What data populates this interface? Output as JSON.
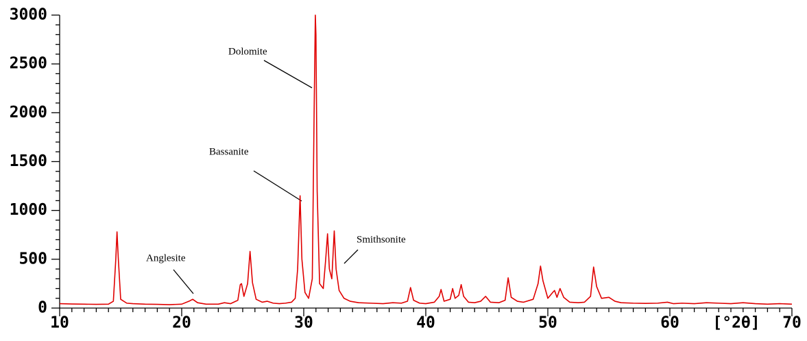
{
  "chart_data": {
    "type": "line",
    "color": "#e00000",
    "x_label": "[°2θ]",
    "x": [
      10,
      11,
      12,
      13,
      14,
      14.4,
      14.6,
      14.7,
      14.8,
      15.0,
      15.5,
      16,
      17,
      18,
      19,
      20,
      20.6,
      20.9,
      21.3,
      22,
      23,
      23.5,
      24,
      24.6,
      24.8,
      24.9,
      25.1,
      25.4,
      25.6,
      25.8,
      26.1,
      26.6,
      27,
      27.5,
      28,
      28.5,
      29,
      29.3,
      29.5,
      29.7,
      29.85,
      30.1,
      30.4,
      30.7,
      30.85,
      30.95,
      31.0,
      31.1,
      31.3,
      31.6,
      31.8,
      31.95,
      32.1,
      32.3,
      32.5,
      32.65,
      32.9,
      33.3,
      33.8,
      34.5,
      35.5,
      36.5,
      37.3,
      38,
      38.5,
      38.75,
      39,
      39.5,
      40,
      40.7,
      41.1,
      41.25,
      41.5,
      42,
      42.2,
      42.4,
      42.7,
      42.9,
      43.1,
      43.5,
      44,
      44.5,
      44.9,
      45.3,
      46,
      46.5,
      46.75,
      47,
      47.5,
      48,
      48.8,
      49.2,
      49.4,
      49.6,
      50,
      50.4,
      50.55,
      50.75,
      51.0,
      51.3,
      51.8,
      52.5,
      53,
      53.5,
      53.75,
      54,
      54.4,
      55,
      55.5,
      56,
      57,
      58,
      59,
      59.8,
      60.3,
      61,
      62,
      63,
      64,
      65,
      66,
      67,
      68,
      69,
      70
    ],
    "values": [
      45,
      42,
      40,
      38,
      40,
      70,
      500,
      780,
      520,
      90,
      50,
      45,
      40,
      38,
      35,
      40,
      70,
      90,
      55,
      40,
      40,
      55,
      45,
      80,
      240,
      250,
      120,
      250,
      580,
      260,
      90,
      60,
      70,
      50,
      45,
      50,
      60,
      100,
      400,
      1150,
      500,
      160,
      100,
      300,
      2000,
      3000,
      2800,
      1200,
      250,
      200,
      500,
      760,
      400,
      300,
      790,
      400,
      180,
      100,
      70,
      55,
      50,
      45,
      55,
      50,
      70,
      210,
      80,
      50,
      45,
      60,
      120,
      190,
      70,
      90,
      200,
      100,
      130,
      240,
      120,
      60,
      55,
      70,
      120,
      60,
      55,
      80,
      310,
      110,
      70,
      60,
      90,
      250,
      430,
      280,
      100,
      160,
      180,
      110,
      200,
      110,
      60,
      55,
      60,
      120,
      420,
      220,
      100,
      110,
      70,
      55,
      50,
      48,
      50,
      60,
      45,
      50,
      45,
      55,
      50,
      45,
      55,
      45,
      40,
      45,
      40
    ],
    "xlim": [
      10,
      70
    ],
    "ylim": [
      0,
      3000
    ],
    "xticks": [
      10,
      20,
      30,
      40,
      50,
      60,
      70
    ],
    "yticks": [
      0,
      500,
      1000,
      1500,
      2000,
      2500,
      3000
    ],
    "xminorticks": [
      11,
      12,
      13,
      14,
      15,
      16,
      17,
      18,
      19,
      21,
      22,
      23,
      24,
      25,
      26,
      27,
      28,
      29,
      31,
      32,
      33,
      34,
      35,
      36,
      37,
      38,
      39,
      41,
      42,
      43,
      44,
      45,
      46,
      47,
      48,
      49,
      51,
      52,
      53,
      54,
      55,
      56,
      57,
      58,
      59,
      61,
      62,
      63,
      64,
      65,
      66,
      67,
      68,
      69
    ],
    "yminorticks": [
      100,
      200,
      300,
      400,
      600,
      700,
      800,
      900,
      1100,
      1200,
      1300,
      1400,
      1600,
      1700,
      1800,
      1900,
      2100,
      2200,
      2300,
      2400,
      2600,
      2700,
      2800,
      2900
    ],
    "annotations": [
      "Dolomite",
      "Bassanite",
      "Anglesite",
      "Smithsonite"
    ]
  }
}
